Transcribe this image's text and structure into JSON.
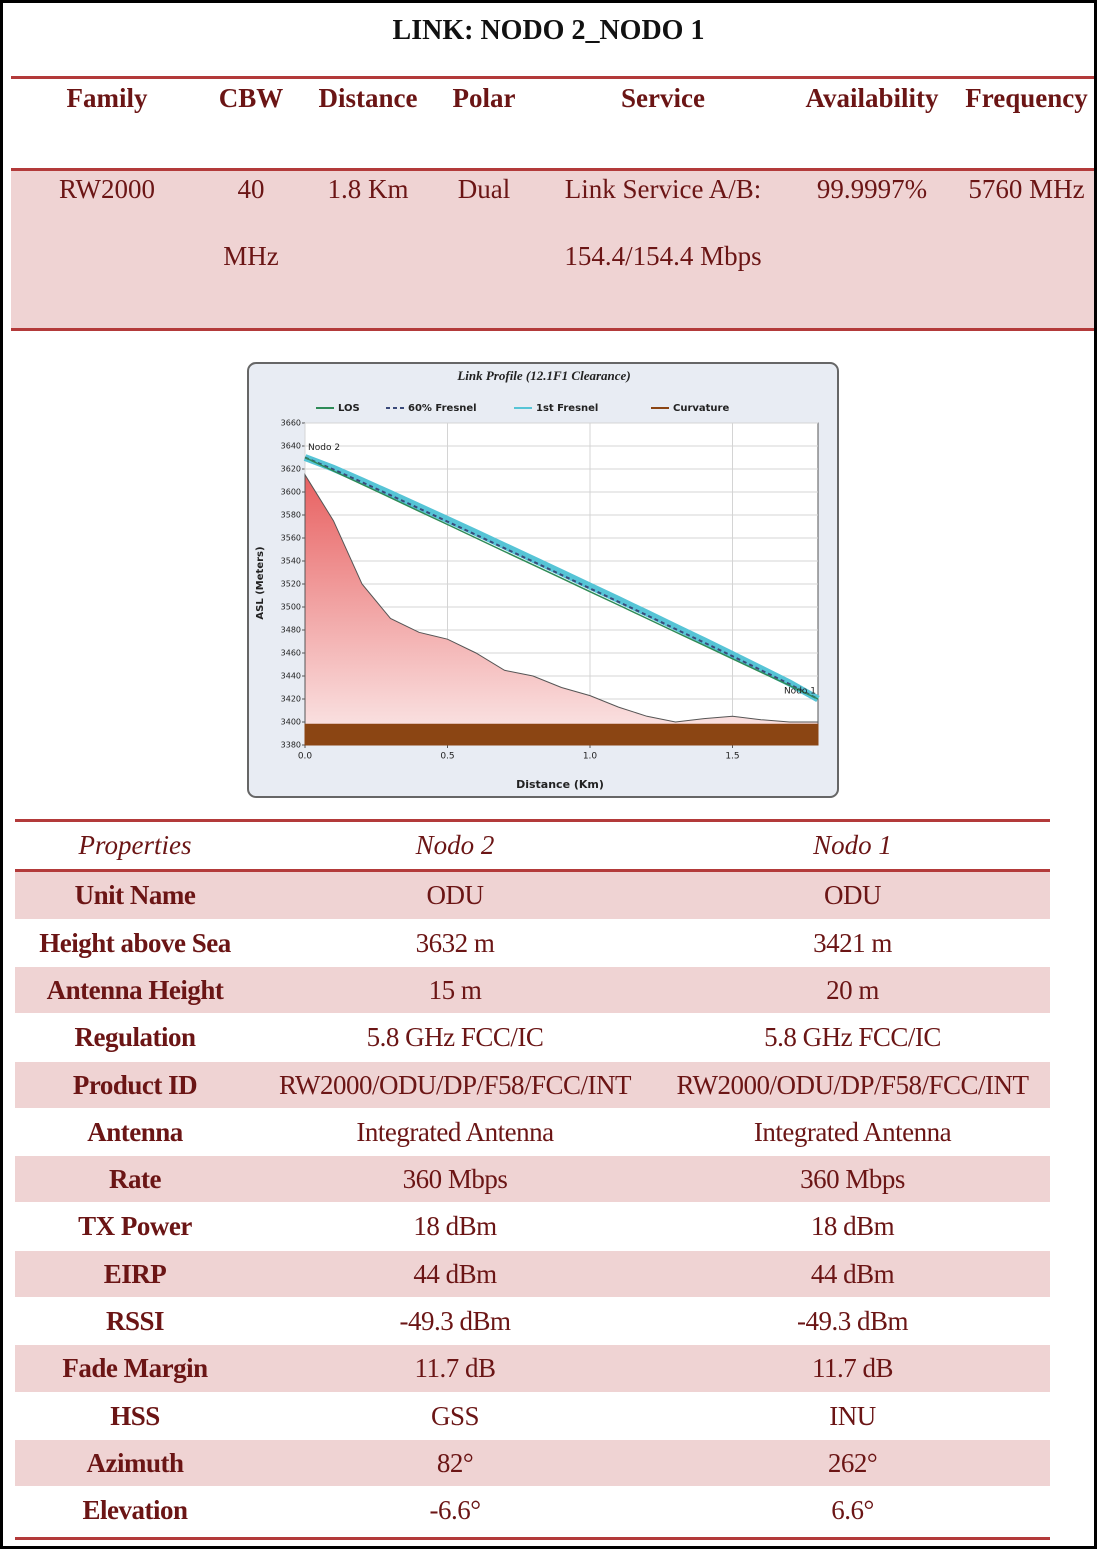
{
  "header": {
    "title": "LINK: NODO 2_NODO 1"
  },
  "link_table": {
    "columns": [
      "Family",
      "CBW",
      "Distance",
      "Polar",
      "Service",
      "Availability",
      "Frequency"
    ],
    "row": [
      "RW2000",
      "40 MHz",
      "1.8 Km",
      "Dual",
      "Link Service A/B: 154.4/154.4 Mbps",
      "99.9997%",
      "5760 MHz"
    ]
  },
  "chart_data": {
    "type": "line",
    "title": "Link Profile (12.1F1 Clearance)",
    "x_label": "Distance (Km)",
    "y_label": "ASL (Meters)",
    "annotations": [
      "Nodo 2",
      "Nodo 1"
    ],
    "x": [
      0,
      0.1,
      0.2,
      0.3,
      0.4,
      0.5,
      0.6,
      0.7,
      0.8,
      0.9,
      1.0,
      1.1,
      1.2,
      1.3,
      1.4,
      1.5,
      1.6,
      1.7,
      1.8
    ],
    "series": [
      {
        "color": "#e88080",
        "fill": true,
        "values": [
          3615,
          3575,
          3520,
          3490,
          3478,
          3472,
          3460,
          3445,
          3440,
          3430,
          3423,
          3413,
          3405,
          3400,
          3403,
          3405,
          3402,
          3400,
          3400
        ]
      },
      {
        "name": "Curvature",
        "color": "#8b4513",
        "fill": true,
        "values": [
          3398,
          3398,
          3398,
          3398,
          3398,
          3398,
          3398,
          3398,
          3398,
          3398,
          3398,
          3398,
          3398,
          3398,
          3398,
          3398,
          3398,
          3398,
          3398
        ]
      },
      {
        "name": "1st Fresnel",
        "color": "#56c4d6",
        "values": [
          3630,
          3620.5,
          3609.7,
          3598.6,
          3587.3,
          3576,
          3564.6,
          3553,
          3541.5,
          3529.8,
          3518.1,
          3506.4,
          3494.6,
          3482.6,
          3470.7,
          3458.6,
          3446.3,
          3433.9,
          3420
        ]
      },
      {
        "name": "60% Fresnel",
        "color": "#3a4a7a",
        "dashed": true,
        "values": [
          3630,
          3619.6,
          3608.5,
          3597.2,
          3585.7,
          3574.3,
          3562.8,
          3551.1,
          3539.6,
          3527.9,
          3516.2,
          3504.5,
          3492.8,
          3480.9,
          3469.1,
          3457.2,
          3445.1,
          3433,
          3420
        ]
      },
      {
        "name": "LOS",
        "color": "#2e8b57",
        "values": [
          3630,
          3618.3,
          3606.7,
          3595,
          3583.3,
          3571.7,
          3560,
          3548.3,
          3536.7,
          3525,
          3513.3,
          3501.7,
          3490,
          3478.3,
          3466.7,
          3455,
          3443.3,
          3431.7,
          3420
        ]
      }
    ],
    "xlim": [
      0,
      1.8
    ],
    "xticks": [
      {
        "value": 0,
        "label": "0.0"
      },
      0.5,
      {
        "value": 1,
        "label": "1.0"
      },
      1.5
    ],
    "ylim": [
      3380,
      3660
    ],
    "yticks": [
      3380,
      3400,
      3420,
      3440,
      3460,
      3480,
      3500,
      3520,
      3540,
      3560,
      3580,
      3600,
      3620,
      3640,
      3660
    ],
    "grid": true
  },
  "properties_table": {
    "columns": [
      "Properties",
      "Nodo 2",
      "Nodo 1"
    ],
    "rows": [
      [
        "Unit Name",
        "ODU",
        "ODU"
      ],
      [
        "Height above Sea",
        "3632 m",
        "3421 m"
      ],
      [
        "Antenna Height",
        "15 m",
        "20 m"
      ],
      [
        "Regulation",
        "5.8 GHz FCC/IC",
        "5.8 GHz FCC/IC"
      ],
      [
        "Product ID",
        "RW2000/ODU/DP/F58/FCC/INT",
        "RW2000/ODU/DP/F58/FCC/INT"
      ],
      [
        "Antenna",
        "Integrated Antenna",
        "Integrated Antenna"
      ],
      [
        "Rate",
        "360 Mbps",
        "360 Mbps"
      ],
      [
        "TX Power",
        "18 dBm",
        "18 dBm"
      ],
      [
        "EIRP",
        "44 dBm",
        "44 dBm"
      ],
      [
        "RSSI",
        "-49.3 dBm",
        "-49.3 dBm"
      ],
      [
        "Fade Margin",
        "11.7 dB",
        "11.7 dB"
      ],
      [
        "HSS",
        "GSS",
        "INU"
      ],
      [
        "Azimuth",
        "82°",
        "262°"
      ],
      [
        "Elevation",
        "-6.6°",
        "6.6°"
      ]
    ]
  }
}
